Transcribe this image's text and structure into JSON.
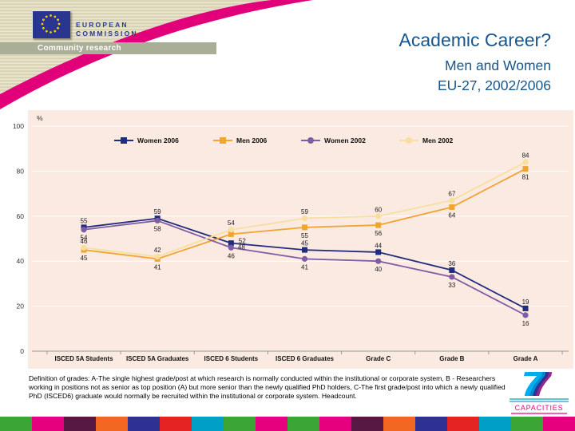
{
  "header": {
    "commission_line1": "EUROPEAN",
    "commission_line2": "COMMISSION",
    "banner_label": "Community research"
  },
  "slide_title": {
    "title": "Academic Career?",
    "subtitle_line1": "Men and Women",
    "subtitle_line2": "EU-27, 2002/2006"
  },
  "theme": {
    "accent_pink": "#E2007A",
    "header_beige": "#D9D4B6",
    "header_beige_stripe": "#ECE8D5",
    "banner_olive": "#A9AE97",
    "plot_background": "#FAEAE1",
    "title_blue": "#17568C",
    "flag_blue": "#29358E",
    "flag_star_yellow": "#FFCC00"
  },
  "chart_data": {
    "type": "line",
    "title": "",
    "xlabel": "",
    "ylabel": "%",
    "ylim": [
      0,
      100
    ],
    "yticks": [
      0,
      20,
      40,
      60,
      80,
      100
    ],
    "grid": "horizontal",
    "legend_position": "top",
    "categories": [
      "ISCED 5A Students",
      "ISCED 5A Graduates",
      "ISCED 6 Students",
      "ISCED 6 Graduates",
      "Grade C",
      "Grade B",
      "Grade A"
    ],
    "series": [
      {
        "name": "Women 2006",
        "color": "#202C7D",
        "marker": "square",
        "label_pos": "above",
        "values": [
          55,
          59,
          48,
          45,
          44,
          36,
          19
        ]
      },
      {
        "name": "Men 2006",
        "color": "#F0A432",
        "marker": "square",
        "label_pos": "below",
        "values": [
          45,
          41,
          52,
          55,
          56,
          64,
          81
        ]
      },
      {
        "name": "Women 2002",
        "color": "#7F5CA4",
        "marker": "circle",
        "label_pos": "below",
        "values": [
          54,
          58,
          46,
          41,
          40,
          33,
          16
        ]
      },
      {
        "name": "Men 2002",
        "color": "#F8DF9F",
        "marker": "circle",
        "label_pos": "above",
        "values": [
          46,
          42,
          54,
          59,
          60,
          67,
          84
        ]
      }
    ]
  },
  "footer": {
    "definition": "Definition of grades: A-The single highest grade/post at which research is normally conducted within the institutional or corporate system, B - Researchers working in positions not as senior as top position (A) but more senior than the newly qualified PhD holders, C-The first grade/post into which a newly qualified PhD (ISCED6) graduate would normally be recruited within the institutional or corporate system. Headcount.",
    "capacities_glyph": "7",
    "capacities_label": "CAPACITIES"
  },
  "footer_strip": {
    "colors": [
      "#3BA535",
      "#E6007E",
      "#571943",
      "#F26823",
      "#2E3092",
      "#E52322",
      "#009FC7",
      "#3BA535",
      "#E6007E",
      "#3BA535",
      "#E6007E",
      "#571943",
      "#F26823",
      "#2E3092",
      "#E52322",
      "#009FC7",
      "#3BA535",
      "#E6007E"
    ]
  }
}
